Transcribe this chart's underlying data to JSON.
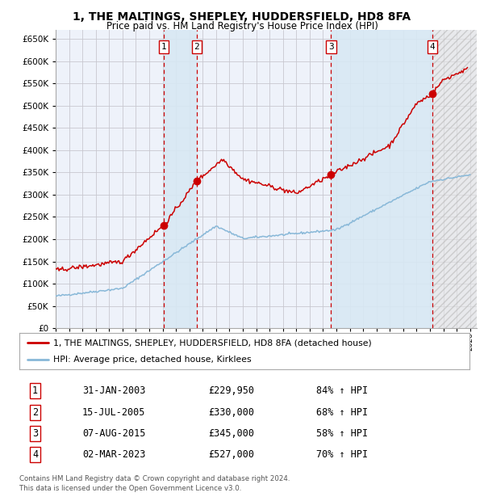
{
  "title": "1, THE MALTINGS, SHEPLEY, HUDDERSFIELD, HD8 8FA",
  "subtitle": "Price paid vs. HM Land Registry's House Price Index (HPI)",
  "ylim": [
    0,
    670000
  ],
  "yticks": [
    0,
    50000,
    100000,
    150000,
    200000,
    250000,
    300000,
    350000,
    400000,
    450000,
    500000,
    550000,
    600000,
    650000
  ],
  "xlim_start": 1995.0,
  "xlim_end": 2026.5,
  "background_color": "#ffffff",
  "plot_bg_color": "#eef2fa",
  "grid_color": "#c8c8d0",
  "hpi_line_color": "#88b8d8",
  "price_line_color": "#cc0000",
  "sale_marker_color": "#cc0000",
  "vspan_color": "#d8e8f4",
  "vline_color": "#cc0000",
  "sales": [
    {
      "label": "1",
      "date_num": 2003.08,
      "price": 229950,
      "date_str": "31-JAN-2003",
      "price_str": "£229,950",
      "pct": "84% ↑ HPI"
    },
    {
      "label": "2",
      "date_num": 2005.54,
      "price": 330000,
      "date_str": "15-JUL-2005",
      "price_str": "£330,000",
      "pct": "68% ↑ HPI"
    },
    {
      "label": "3",
      "date_num": 2015.6,
      "price": 345000,
      "date_str": "07-AUG-2015",
      "price_str": "£345,000",
      "pct": "58% ↑ HPI"
    },
    {
      "label": "4",
      "date_num": 2023.17,
      "price": 527000,
      "date_str": "02-MAR-2023",
      "price_str": "£527,000",
      "pct": "70% ↑ HPI"
    }
  ],
  "legend_line1": "1, THE MALTINGS, SHEPLEY, HUDDERSFIELD, HD8 8FA (detached house)",
  "legend_line2": "HPI: Average price, detached house, Kirklees",
  "footer_line1": "Contains HM Land Registry data © Crown copyright and database right 2024.",
  "footer_line2": "This data is licensed under the Open Government Licence v3.0."
}
